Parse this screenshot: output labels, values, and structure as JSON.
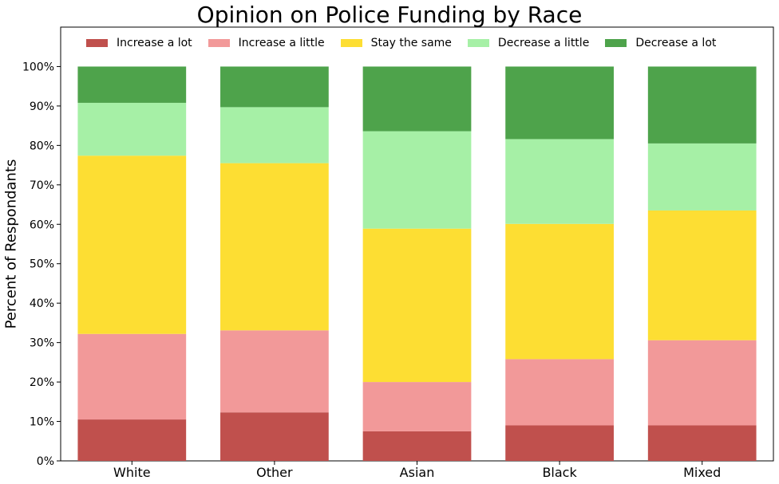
{
  "chart_data": {
    "type": "bar",
    "stacked": true,
    "title": "Opinion on Police Funding by Race",
    "xlabel": "",
    "ylabel": "Percent of Respondants",
    "ylim": [
      0,
      110
    ],
    "yticks": [
      "0%",
      "10%",
      "20%",
      "30%",
      "40%",
      "50%",
      "60%",
      "70%",
      "80%",
      "90%",
      "100%"
    ],
    "categories": [
      "White",
      "Other",
      "Asian",
      "Black",
      "Mixed"
    ],
    "legend_position": "top",
    "grid": false,
    "series": [
      {
        "name": "Increase a lot",
        "color": "#c0504d",
        "values": [
          10.5,
          12.3,
          7.5,
          9.0,
          9.0
        ]
      },
      {
        "name": "Increase a little",
        "color": "#f29999",
        "values": [
          21.7,
          20.8,
          12.5,
          16.8,
          21.6
        ]
      },
      {
        "name": "Stay the same",
        "color": "#fdde33",
        "values": [
          45.2,
          42.4,
          38.9,
          34.3,
          32.9
        ]
      },
      {
        "name": "Decrease a little",
        "color": "#a6f0a6",
        "values": [
          13.4,
          14.2,
          24.7,
          21.5,
          17.0
        ]
      },
      {
        "name": "Decrease a lot",
        "color": "#4ea34b",
        "values": [
          9.2,
          10.3,
          16.4,
          18.4,
          19.5
        ]
      }
    ]
  }
}
